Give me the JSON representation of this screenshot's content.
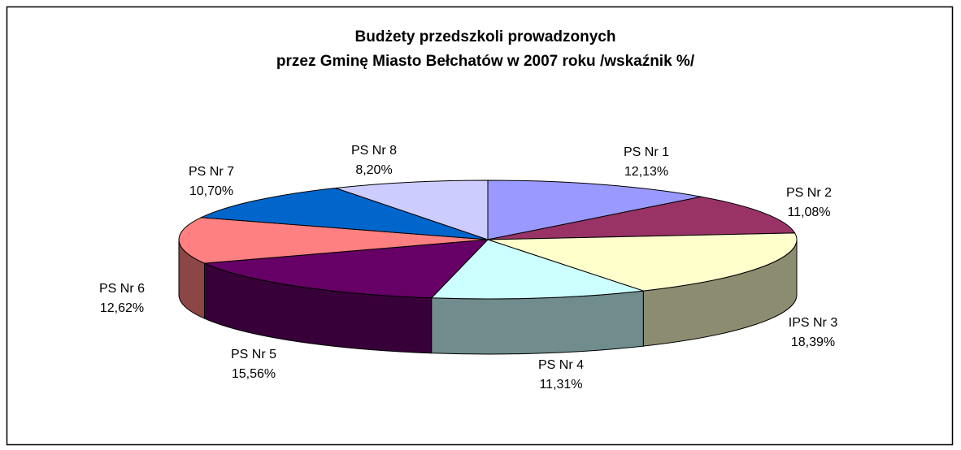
{
  "chart_data": {
    "type": "pie3d",
    "title": [
      "Budżety przedszkoli prowadzonych",
      "przez Gminę Miasto Bełchatów w 2007 roku /wskaźnik %/"
    ],
    "categories": [
      "PS Nr 1",
      "PS Nr 2",
      "IPS Nr 3",
      "PS Nr 4",
      "PS Nr 5",
      "PS Nr 6",
      "PS Nr 7",
      "PS Nr 8"
    ],
    "values": [
      12.13,
      11.08,
      18.39,
      11.31,
      15.56,
      12.62,
      10.7,
      8.2
    ],
    "value_labels": [
      "12,13%",
      "11,08%",
      "18,39%",
      "11,31%",
      "15,56%",
      "12,62%",
      "10,70%",
      "8,20%"
    ],
    "colors": [
      "#9999ff",
      "#993366",
      "#ffffcc",
      "#ccffff",
      "#660066",
      "#ff8080",
      "#0066cc",
      "#ccccff"
    ]
  }
}
